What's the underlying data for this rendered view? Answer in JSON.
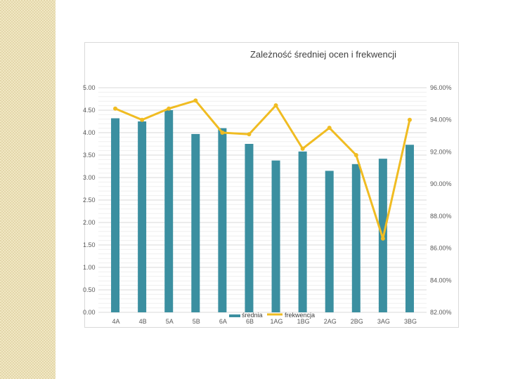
{
  "chart_data": {
    "type": "bar",
    "title": "Zależność średniej ocen i frekwencji",
    "categories": [
      "4A",
      "4B",
      "5A",
      "5B",
      "6A",
      "6B",
      "1AG",
      "1BG",
      "2AG",
      "2BG",
      "3AG",
      "3BG"
    ],
    "series": [
      {
        "name": "średnia",
        "type": "bar",
        "axis": "left",
        "color": "#3b8fa0",
        "values": [
          4.32,
          4.25,
          4.5,
          3.97,
          4.1,
          3.75,
          3.38,
          3.58,
          3.15,
          3.3,
          3.42,
          3.73
        ]
      },
      {
        "name": "frekwencja",
        "type": "line",
        "axis": "right",
        "color": "#f0bc22",
        "values": [
          94.7,
          94.0,
          94.7,
          95.2,
          93.2,
          93.1,
          94.9,
          92.2,
          93.5,
          91.8,
          86.6,
          94.0
        ]
      }
    ],
    "y_left": {
      "range": [
        0,
        5
      ],
      "ticks": [
        "0.00",
        "0.50",
        "1.00",
        "1.50",
        "2.00",
        "2.50",
        "3.00",
        "3.50",
        "4.00",
        "4.50",
        "5.00"
      ]
    },
    "y_right": {
      "range": [
        82,
        96
      ],
      "ticks": [
        "82.00%",
        "84.00%",
        "86.00%",
        "88.00%",
        "90.00%",
        "92.00%",
        "94.00%",
        "96.00%"
      ]
    },
    "grid": true,
    "legend_position": "bottom"
  }
}
